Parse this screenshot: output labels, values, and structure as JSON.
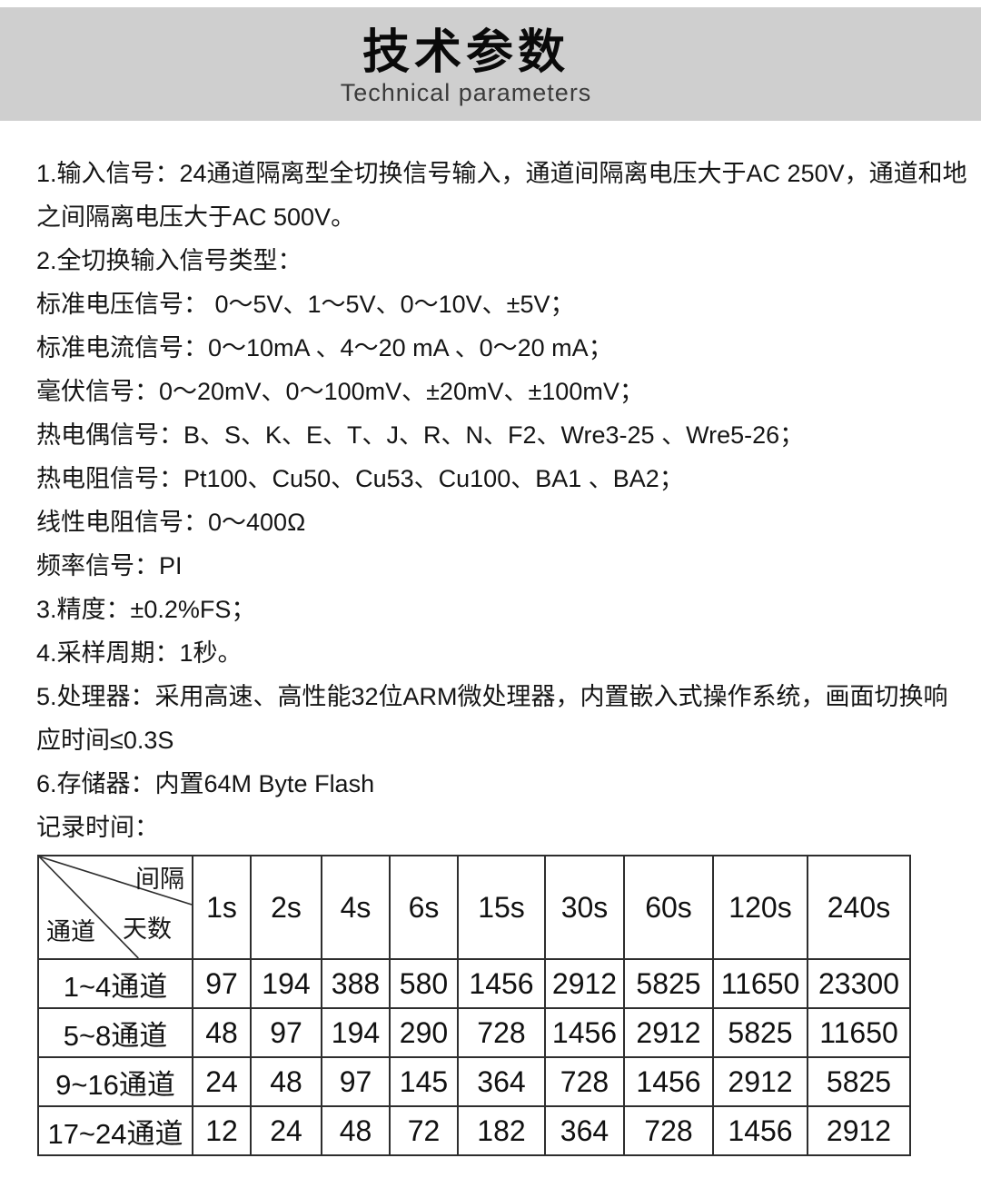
{
  "header": {
    "title": "技术参数",
    "subtitle": "Technical parameters"
  },
  "colors": {
    "banner_bg": "#cfcfcf",
    "text": "#151515",
    "table_border": "#2e2e2e"
  },
  "specs": {
    "lines": [
      "1.输入信号：24通道隔离型全切换信号输入，通道间隔离电压大于AC 250V，通道和地",
      "之间隔离电压大于AC 500V。",
      "2.全切换输入信号类型：",
      "标准电压信号： 0～5V、1～5V、0～10V、±5V；",
      "标准电流信号：0～10mA 、4～20 mA 、0～20 mA；",
      "毫伏信号：0～20mV、0～100mV、±20mV、±100mV；",
      "热电偶信号：B、S、K、E、T、J、R、N、F2、Wre3-25 、Wre5-26；",
      "热电阻信号：Pt100、Cu50、Cu53、Cu100、BA1 、BA2；",
      "线性电阻信号：0～400Ω",
      "频率信号：PI",
      "3.精度：±0.2%FS；",
      "4.采样周期：1秒。",
      "5.处理器：采用高速、高性能32位ARM微处理器，内置嵌入式操作系统，画面切换响",
      "应时间≤0.3S",
      "6.存储器：内置64M Byte Flash",
      "记录时间："
    ]
  },
  "record_table": {
    "corner": {
      "interval_label": "间隔",
      "days_label": "天数",
      "channel_label": "通道"
    },
    "columns": [
      "1s",
      "2s",
      "4s",
      "6s",
      "15s",
      "30s",
      "60s",
      "120s",
      "240s"
    ],
    "rows": [
      {
        "label": "1~4通道",
        "values": [
          97,
          194,
          388,
          580,
          1456,
          2912,
          5825,
          11650,
          23300
        ]
      },
      {
        "label": "5~8通道",
        "values": [
          48,
          97,
          194,
          290,
          728,
          1456,
          2912,
          5825,
          11650
        ]
      },
      {
        "label": "9~16通道",
        "values": [
          24,
          48,
          97,
          145,
          364,
          728,
          1456,
          2912,
          5825
        ]
      },
      {
        "label": "17~24通道",
        "values": [
          12,
          24,
          48,
          72,
          182,
          364,
          728,
          1456,
          2912
        ]
      }
    ]
  }
}
